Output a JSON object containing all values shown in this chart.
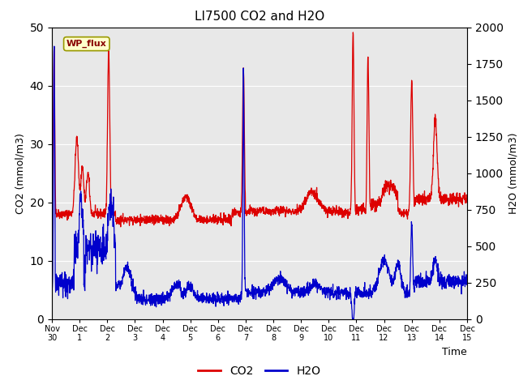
{
  "title": "LI7500 CO2 and H2O",
  "xlabel": "Time",
  "ylabel_left": "CO2 (mmol/m3)",
  "ylabel_right": "H2O (mmol/m3)",
  "ylim_left": [
    0,
    50
  ],
  "ylim_right": [
    0,
    2000
  ],
  "co2_color": "#dd0000",
  "h2o_color": "#0000cc",
  "bg_color": "#e8e8e8",
  "fig_bg": "#ffffff",
  "annotation_text": "WP_flux",
  "annotation_bg": "#ffffcc",
  "annotation_border": "#999900",
  "legend_labels": [
    "CO2",
    "H2O"
  ],
  "xtick_labels": [
    "Nov 30",
    "Dec 1",
    "Dec 2",
    "Dec 3",
    "Dec 4",
    "Dec 5",
    "Dec 6",
    "Dec 7",
    "Dec 8",
    "Dec 9",
    "Dec 10",
    "Dec 11",
    "Dec 12",
    "Dec 13",
    "Dec 14",
    "Dec 15"
  ],
  "num_points": 2000
}
